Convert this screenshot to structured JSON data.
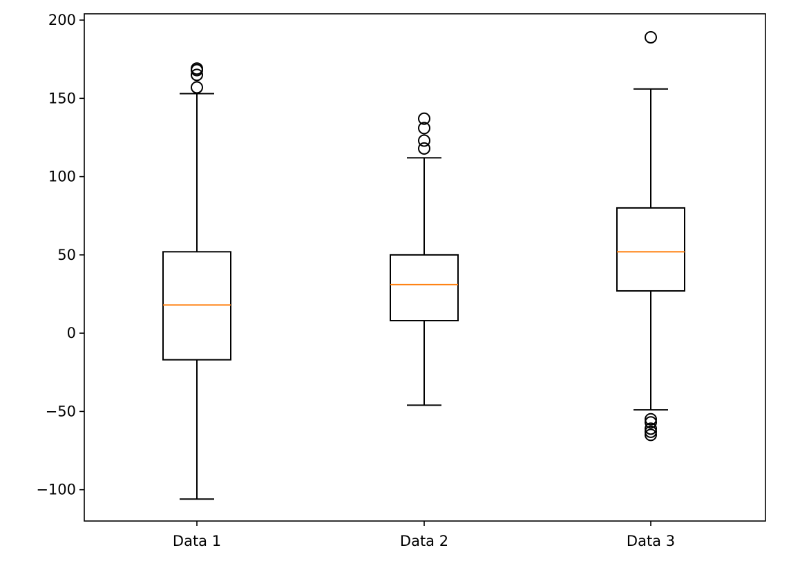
{
  "chart_data": {
    "type": "boxplot",
    "title": "",
    "xlabel": "",
    "ylabel": "",
    "categories": [
      "Data 1",
      "Data 2",
      "Data 3"
    ],
    "ylim": [
      -120,
      204
    ],
    "yticks": [
      -100,
      -50,
      0,
      50,
      100,
      150,
      200
    ],
    "ytick_labels": [
      "−100",
      "−50",
      "0",
      "50",
      "100",
      "150",
      "200"
    ],
    "grid": false,
    "legend": "none",
    "colors": {
      "box": "#000000",
      "median": "#ff7f0e",
      "flier": "#000000",
      "background": "#ffffff"
    },
    "boxes": [
      {
        "label": "Data 1",
        "whisker_low": -106,
        "q1": -17,
        "median": 18,
        "q3": 52,
        "whisker_high": 153,
        "fliers": [
          157,
          165,
          168,
          169
        ]
      },
      {
        "label": "Data 2",
        "whisker_low": -46,
        "q1": 8,
        "median": 31,
        "q3": 50,
        "whisker_high": 112,
        "fliers": [
          118,
          123,
          131,
          137
        ]
      },
      {
        "label": "Data 3",
        "whisker_low": -49,
        "q1": 27,
        "median": 52,
        "q3": 80,
        "whisker_high": 156,
        "fliers": [
          189,
          -55,
          -57,
          -61,
          -63,
          -65
        ]
      }
    ]
  }
}
